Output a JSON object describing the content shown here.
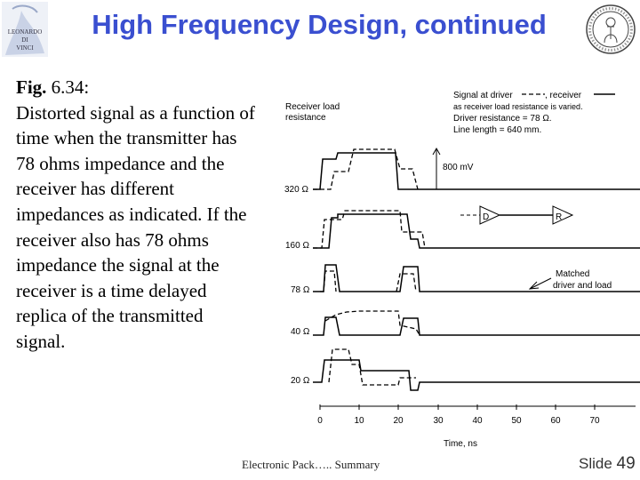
{
  "header": {
    "title": "High Frequency Design, continued",
    "logo_left_text": [
      "LEONARDO",
      "DI",
      "VINCI"
    ]
  },
  "caption": {
    "fig_label": "Fig.",
    "fig_number": "6.34:",
    "body": "Distorted signal as a function of time when the transmitter has 78 ohms impedance and the receiver has different impedances as indicated. If the receiver also has 78 ohms impedance the signal at the receiver is a time delayed replica of the transmitted signal."
  },
  "figure": {
    "receiver_load_label": "Receiver load",
    "resistance_label": "resistance",
    "legend_signal_text": "Signal at driver",
    "legend_receiver_text": ", receiver",
    "legend_line2": "as receiver load resistance is varied.",
    "legend_line3": "Driver resistance = 78 Ω.",
    "legend_line4": "Line length = 640 mm.",
    "amplitude_label": "800 mV",
    "driver_label": "D",
    "receiver_label": "R",
    "matched_label_1": "Matched",
    "matched_label_2": "driver and load",
    "load_labels": [
      "320 Ω",
      "160 Ω",
      "78 Ω",
      "40 Ω",
      "20 Ω"
    ],
    "x_ticks": [
      "0",
      "10",
      "20",
      "30",
      "40",
      "50",
      "60",
      "70"
    ],
    "x_axis_label": "Time, ns"
  },
  "footer": {
    "text": "Electronic Pack….. Summary",
    "slide_prefix": "Slide",
    "slide_number": "49"
  }
}
